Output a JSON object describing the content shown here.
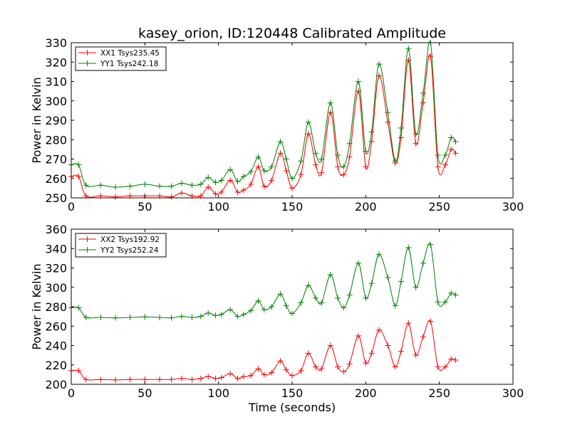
{
  "chart_data": [
    {
      "type": "line",
      "title": "kasey_orion, ID:120448 Calibrated Amplitude",
      "xlabel": "",
      "ylabel": "Power in Kelvin",
      "xlim": [
        0,
        300
      ],
      "ylim": [
        250,
        330
      ],
      "xticks": [
        0,
        50,
        100,
        150,
        200,
        250,
        300
      ],
      "yticks": [
        250,
        260,
        270,
        280,
        290,
        300,
        310,
        320,
        330
      ],
      "legend_position": "top-left",
      "grid": false,
      "series": [
        {
          "name": "XX1 Tsys235.45",
          "color": "#ff0000",
          "x": [
            0,
            5,
            10,
            20,
            30,
            40,
            50,
            60,
            68,
            75,
            82,
            88,
            93,
            98,
            102,
            108,
            113,
            117,
            122,
            127,
            131,
            136,
            142,
            146,
            150,
            156,
            161,
            166,
            170,
            176,
            181,
            185,
            189,
            195,
            200,
            204,
            209,
            215,
            220,
            224,
            229,
            234,
            239,
            244,
            249,
            254,
            258,
            261
          ],
          "y": [
            261,
            261,
            251,
            251,
            250.5,
            251,
            251,
            251,
            250.5,
            252.5,
            251,
            251,
            255.5,
            252,
            253,
            259,
            253,
            254,
            257,
            266,
            256,
            259,
            273,
            264,
            255,
            262,
            283,
            267,
            263,
            294,
            266,
            262,
            271,
            305,
            266,
            279,
            313,
            289,
            268,
            281,
            321,
            278,
            299,
            323,
            266,
            267,
            275,
            273
          ]
        },
        {
          "name": "YY1 Tsys242.18",
          "color": "#008000",
          "x": [
            0,
            5,
            10,
            20,
            30,
            40,
            50,
            60,
            68,
            75,
            82,
            88,
            93,
            98,
            102,
            108,
            113,
            117,
            122,
            127,
            131,
            136,
            142,
            146,
            150,
            156,
            161,
            166,
            170,
            176,
            181,
            185,
            189,
            195,
            200,
            204,
            209,
            215,
            220,
            224,
            229,
            234,
            239,
            244,
            249,
            254,
            258,
            261
          ],
          "y": [
            267,
            267,
            256.5,
            256.5,
            255.5,
            256,
            257,
            256,
            256,
            257.5,
            256.5,
            257,
            260.5,
            258,
            259,
            264.5,
            258.5,
            261,
            263.5,
            271,
            264,
            266,
            279,
            270,
            260,
            269,
            289,
            273,
            270,
            299,
            272,
            266,
            278,
            310,
            274,
            284,
            319,
            294,
            269,
            286,
            327,
            283,
            304,
            330,
            272,
            272,
            281,
            279
          ]
        }
      ]
    },
    {
      "type": "line",
      "title": "",
      "xlabel": "Time (seconds)",
      "ylabel": "Power in Kelvin",
      "xlim": [
        0,
        300
      ],
      "ylim": [
        200,
        360
      ],
      "xticks": [
        0,
        50,
        100,
        150,
        200,
        250,
        300
      ],
      "yticks": [
        200,
        220,
        240,
        260,
        280,
        300,
        320,
        340,
        360
      ],
      "legend_position": "top-left",
      "grid": false,
      "series": [
        {
          "name": "XX2 Tsys192.92",
          "color": "#ff0000",
          "x": [
            0,
            5,
            10,
            20,
            30,
            40,
            50,
            60,
            68,
            75,
            82,
            88,
            93,
            98,
            102,
            108,
            113,
            117,
            122,
            127,
            131,
            136,
            142,
            146,
            150,
            156,
            161,
            166,
            170,
            176,
            181,
            185,
            189,
            195,
            200,
            204,
            209,
            215,
            220,
            224,
            229,
            234,
            239,
            244,
            249,
            254,
            258,
            261
          ],
          "y": [
            214,
            214,
            205,
            205,
            204.5,
            205,
            205,
            205,
            205,
            206,
            205,
            206,
            208,
            206,
            207,
            211,
            206,
            208,
            209,
            216,
            210,
            212,
            224,
            215,
            209,
            214,
            232,
            218,
            216,
            240,
            218,
            213,
            221,
            250,
            222,
            232,
            256,
            240,
            218,
            234,
            263,
            230,
            249,
            265,
            218,
            218,
            226,
            225
          ]
        },
        {
          "name": "YY2 Tsys252.24",
          "color": "#008000",
          "x": [
            0,
            5,
            10,
            20,
            30,
            40,
            50,
            60,
            68,
            75,
            82,
            88,
            93,
            98,
            102,
            108,
            113,
            117,
            122,
            127,
            131,
            136,
            142,
            146,
            150,
            156,
            161,
            166,
            170,
            176,
            181,
            185,
            189,
            195,
            200,
            204,
            209,
            215,
            220,
            224,
            229,
            234,
            239,
            244,
            249,
            254,
            258,
            261
          ],
          "y": [
            279,
            279,
            269,
            269,
            268.5,
            269,
            269.5,
            269,
            268.5,
            270,
            269,
            270,
            273.5,
            271,
            272,
            277,
            270,
            272,
            276,
            286,
            277,
            280,
            293,
            281,
            273,
            284,
            302,
            289,
            284,
            313,
            289,
            279,
            292,
            325,
            289,
            304,
            334,
            310,
            281,
            306,
            341,
            300,
            325,
            344,
            285,
            285,
            294,
            292
          ]
        }
      ]
    }
  ]
}
